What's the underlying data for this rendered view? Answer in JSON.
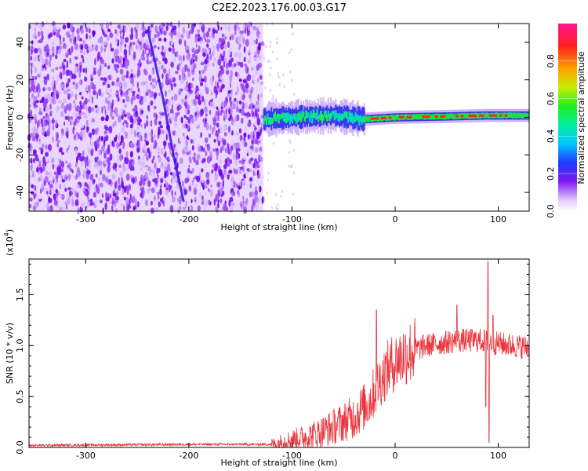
{
  "title": "C2E2.2023.176.00.03.G17",
  "colors": {
    "series": "#e8333a",
    "axis": "#000000",
    "background": "#ffffff"
  },
  "chart_data": [
    {
      "type": "heatmap",
      "xlabel": "Height of straight line (km)",
      "ylabel": "Frequency (Hz)",
      "xlim": [
        -355,
        130
      ],
      "ylim": [
        -50,
        50
      ],
      "xticks": [
        -300,
        -200,
        -100,
        0,
        100
      ],
      "yticks": [
        -40,
        -20,
        0,
        20,
        40
      ],
      "xtick_labels": [
        "-300",
        "-200",
        "-100",
        "0",
        "100"
      ],
      "ytick_labels": [
        "-40",
        "-20",
        "0",
        "20",
        "40"
      ],
      "noise_region_x": [
        -355,
        -128
      ],
      "signal_track": [
        {
          "x": -128,
          "f": -1
        },
        {
          "x": -100,
          "f": 0
        },
        {
          "x": -60,
          "f": 1
        },
        {
          "x": -30,
          "f": -1
        },
        {
          "x": 0,
          "f": 0
        },
        {
          "x": 50,
          "f": 0.5
        },
        {
          "x": 90,
          "f": 1
        },
        {
          "x": 130,
          "f": 1
        }
      ],
      "interference_track": [
        {
          "x": -240,
          "f": 47
        },
        {
          "x": -225,
          "f": 10
        },
        {
          "x": -215,
          "f": -20
        },
        {
          "x": -205,
          "f": -45
        }
      ],
      "colorbar": {
        "label": "Normalized spectral amplitude",
        "range": [
          0,
          1
        ],
        "ticks": [
          0.0,
          0.2,
          0.4,
          0.6,
          0.8
        ],
        "tick_labels": [
          "0.0",
          "0.2",
          "0.4",
          "0.6",
          "0.8"
        ]
      }
    },
    {
      "type": "line",
      "xlabel": "Height of straight line (km)",
      "ylabel": "SNR (10 * v/v)",
      "multiplier": "(x10⁴)",
      "multiplier_base": "(x10",
      "multiplier_exp": "4",
      "multiplier_close": ")",
      "xlim": [
        -355,
        130
      ],
      "ylim": [
        0,
        1.85
      ],
      "xticks": [
        -300,
        -200,
        -100,
        0,
        100
      ],
      "yticks": [
        0.0,
        0.5,
        1.0,
        1.5
      ],
      "xtick_labels": [
        "-300",
        "-200",
        "-100",
        "0",
        "100"
      ],
      "ytick_labels": [
        "0.0",
        "0.5",
        "1.0",
        "1.5"
      ],
      "series": [
        {
          "baseline": [
            {
              "x": -355,
              "y": 0.02
            },
            {
              "x": -200,
              "y": 0.03
            },
            {
              "x": -120,
              "y": 0.03
            },
            {
              "x": -100,
              "y": 0.08
            },
            {
              "x": -80,
              "y": 0.12
            },
            {
              "x": -60,
              "y": 0.2
            },
            {
              "x": -40,
              "y": 0.3
            },
            {
              "x": -25,
              "y": 0.45
            },
            {
              "x": -15,
              "y": 0.65
            },
            {
              "x": -5,
              "y": 0.8
            },
            {
              "x": 10,
              "y": 0.92
            },
            {
              "x": 30,
              "y": 1.0
            },
            {
              "x": 60,
              "y": 1.05
            },
            {
              "x": 85,
              "y": 1.05
            },
            {
              "x": 100,
              "y": 1.02
            },
            {
              "x": 130,
              "y": 0.98
            }
          ],
          "spikes": [
            {
              "x": -18,
              "y": 1.35
            },
            {
              "x": 60,
              "y": 1.4
            },
            {
              "x": 90,
              "y": 1.83
            },
            {
              "x": 91,
              "y": 0.05
            },
            {
              "x": 95,
              "y": 1.3
            },
            {
              "x": 88,
              "y": 0.4
            }
          ]
        }
      ]
    }
  ]
}
